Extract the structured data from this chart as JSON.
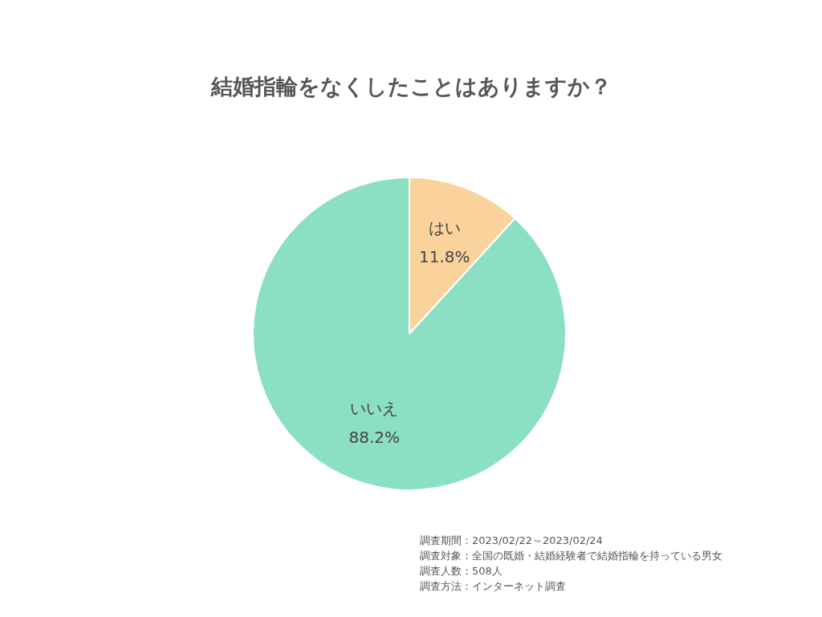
{
  "chart_data": {
    "type": "pie",
    "title": "結婚指輪をなくしたことはありますか？",
    "categories": [
      "はい",
      "いいえ"
    ],
    "values": [
      11.8,
      88.2
    ],
    "colors": [
      "#f9d39b",
      "#8adfc4"
    ],
    "value_labels": [
      "11.8%",
      "88.2%"
    ],
    "annotations": [
      "調査期間：2023/02/22～2023/02/24",
      "調査対象：全国の既婚・結婚経験者で結婚指輪を持っている男女",
      "調査人数：508人",
      "調査方法：インターネット調査"
    ],
    "legend": false
  }
}
